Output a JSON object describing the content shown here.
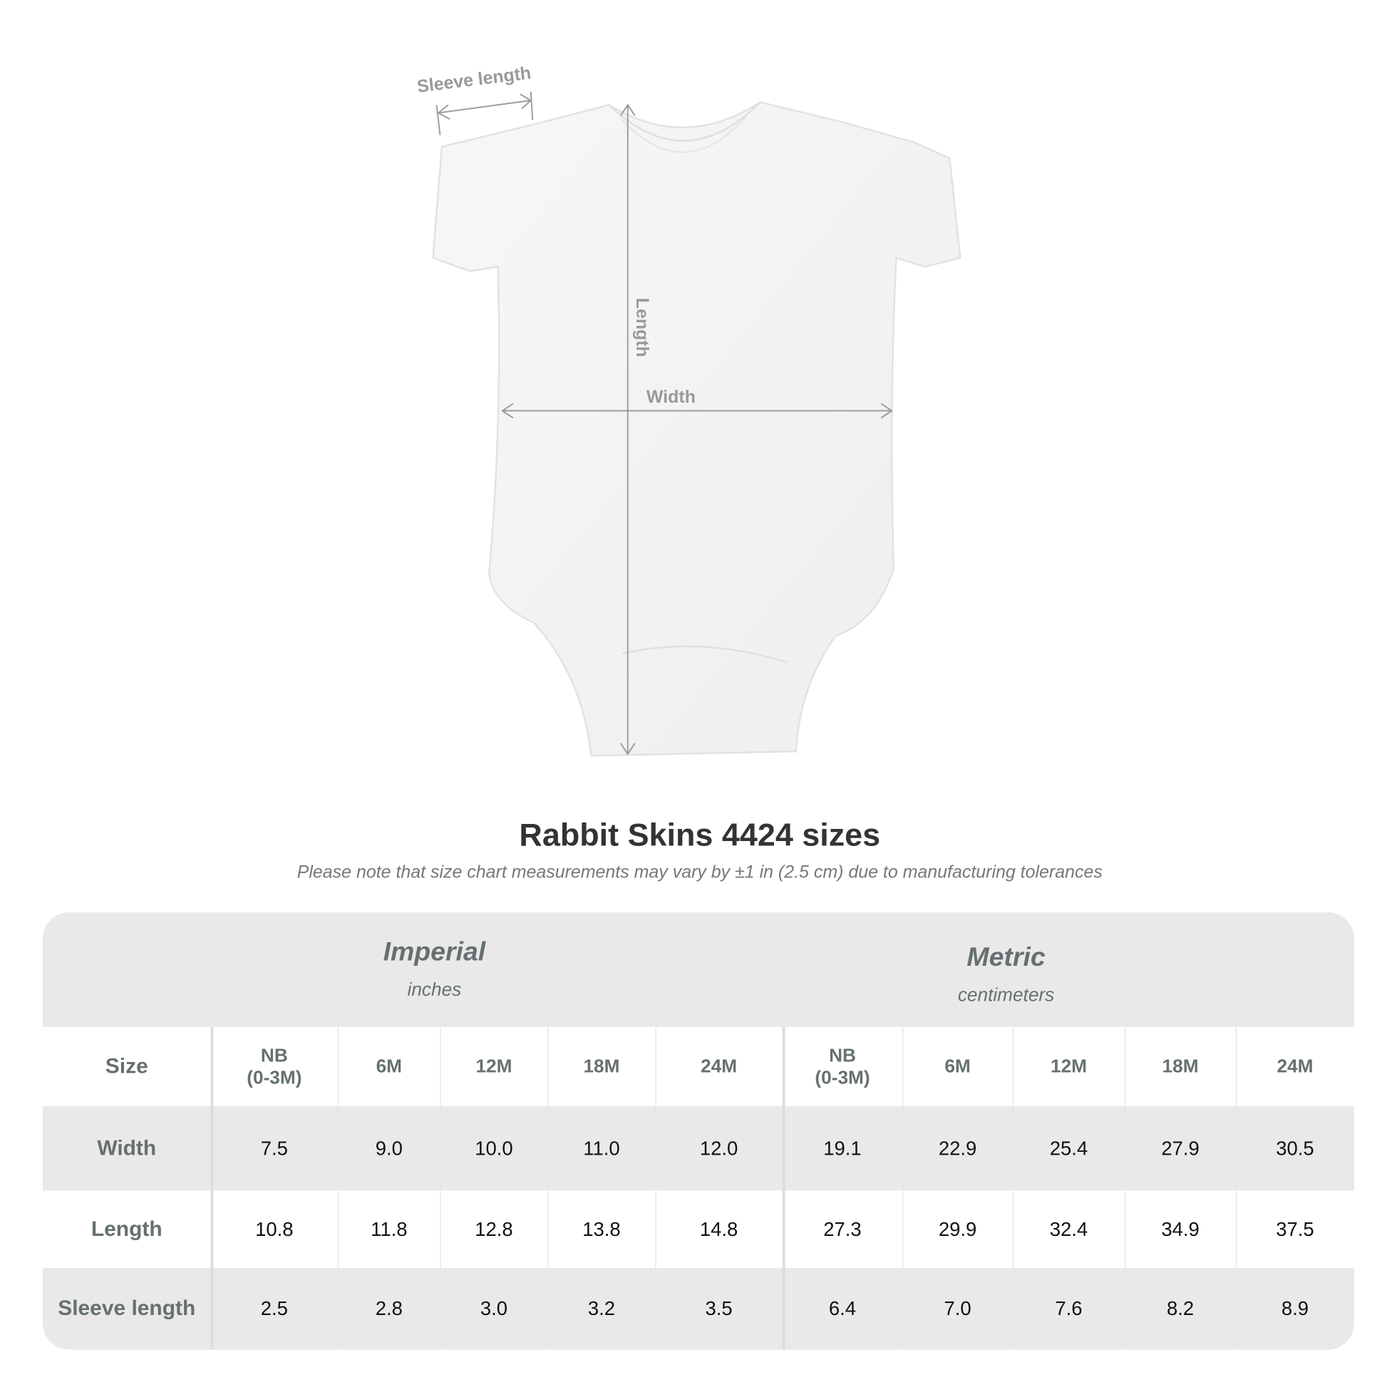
{
  "diagram": {
    "labels": {
      "sleeve": "Sleeve length",
      "length": "Length",
      "width": "Width"
    },
    "annotation_color": "#999999"
  },
  "title": "Rabbit Skins 4424 sizes",
  "subtitle": "Please note that size chart measurements may vary by ±1 in (2.5 cm) due to manufacturing tolerances",
  "table": {
    "groups": [
      {
        "title": "Imperial",
        "unit": "inches"
      },
      {
        "title": "Metric",
        "unit": "centimeters"
      }
    ],
    "size_label": "Size",
    "sizes": [
      "NB\n(0-3M)",
      "6M",
      "12M",
      "18M",
      "24M",
      "NB\n(0-3M)",
      "6M",
      "12M",
      "18M",
      "24M"
    ],
    "rows": [
      {
        "label": "Width",
        "values": [
          "7.5",
          "9.0",
          "10.0",
          "11.0",
          "12.0",
          "19.1",
          "22.9",
          "25.4",
          "27.9",
          "30.5"
        ]
      },
      {
        "label": "Length",
        "values": [
          "10.8",
          "11.8",
          "12.8",
          "13.8",
          "14.8",
          "27.3",
          "29.9",
          "32.4",
          "34.9",
          "37.5"
        ]
      },
      {
        "label": "Sleeve length",
        "values": [
          "2.5",
          "2.8",
          "3.0",
          "3.2",
          "3.5",
          "6.4",
          "7.0",
          "7.6",
          "8.2",
          "8.9"
        ]
      }
    ],
    "colors": {
      "band": "#e9e9e9",
      "label": "#667070"
    }
  }
}
